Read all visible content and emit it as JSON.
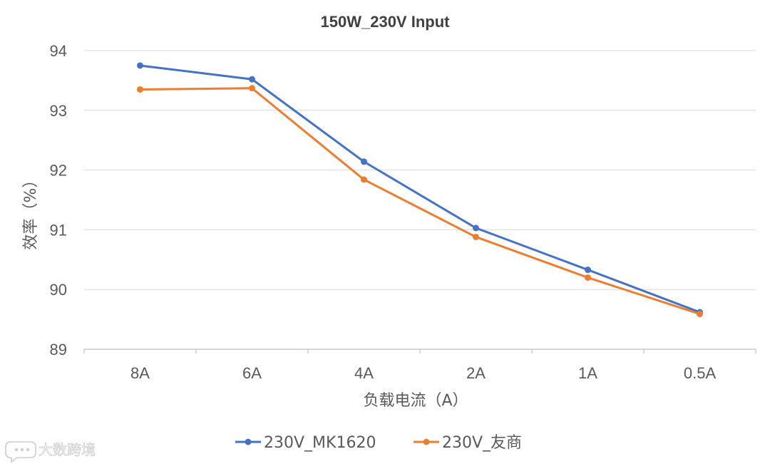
{
  "chart_data": {
    "type": "line",
    "title": "150W_230V Input",
    "xlabel": "负载电流（A）",
    "ylabel": "效率（%）",
    "categories": [
      "8A",
      "6A",
      "4A",
      "2A",
      "1A",
      "0.5A"
    ],
    "ylim": [
      89,
      94
    ],
    "yticks": [
      89,
      90,
      91,
      92,
      93,
      94
    ],
    "grid": true,
    "legend_position": "bottom",
    "series": [
      {
        "name": "230V_MK1620",
        "color": "#4472c4",
        "values": [
          93.75,
          93.52,
          92.14,
          91.03,
          90.33,
          89.62
        ]
      },
      {
        "name": "230V_友商",
        "color": "#ed7d31",
        "values": [
          93.35,
          93.37,
          91.84,
          90.88,
          90.2,
          89.59
        ]
      }
    ]
  },
  "watermark": {
    "text": "大数跨境",
    "icon": "chat-bubble-icon"
  }
}
